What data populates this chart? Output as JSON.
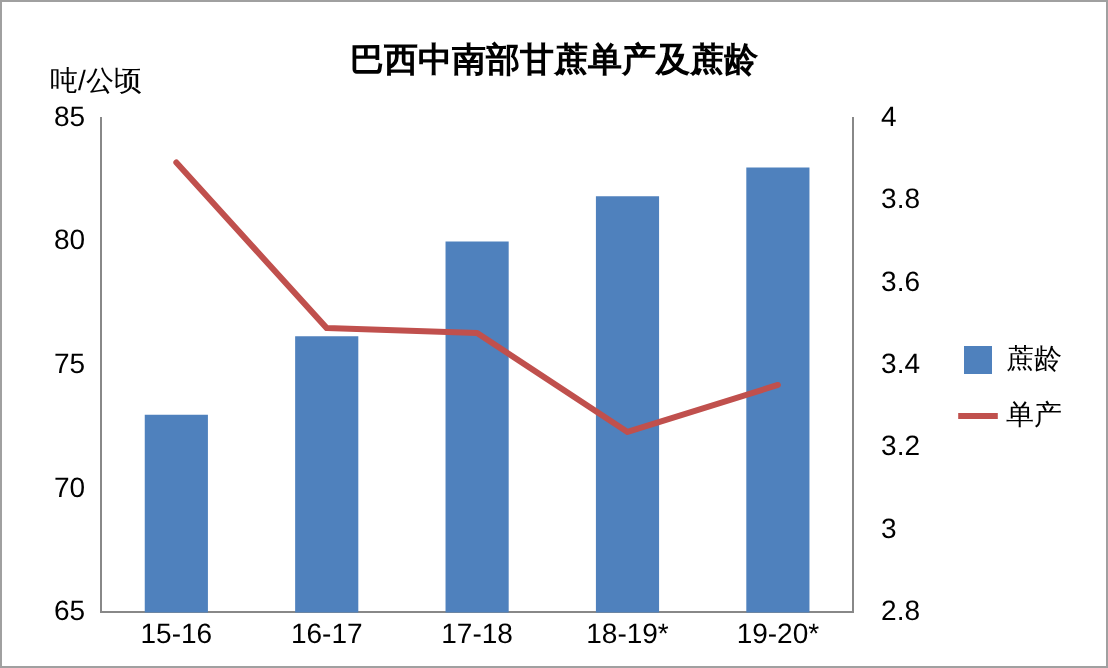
{
  "chart_data": {
    "type": "bar",
    "title": "巴西中南部甘蔗单产及蔗龄",
    "ylabel": "吨/公顷",
    "categories": [
      "15-16",
      "16-17",
      "17-18",
      "18-19*",
      "19-20*"
    ],
    "series": [
      {
        "name": "蔗龄",
        "axis": "y2",
        "color": "#4f81bd",
        "values": [
          3.28,
          3.47,
          3.7,
          3.81,
          3.88
        ]
      },
      {
        "name": "单产",
        "type": "line",
        "axis": "y",
        "color": "#c0504d",
        "values": [
          83.2,
          76.5,
          76.3,
          72.3,
          74.2
        ]
      }
    ],
    "ylim": [
      65,
      85
    ],
    "yticks": [
      65,
      70,
      75,
      80,
      85
    ],
    "y2lim": [
      2.8,
      4
    ],
    "y2ticks": [
      2.8,
      3,
      3.2,
      3.4,
      3.6,
      3.8,
      4
    ],
    "grid": false,
    "legend": "right",
    "marker": "none"
  }
}
